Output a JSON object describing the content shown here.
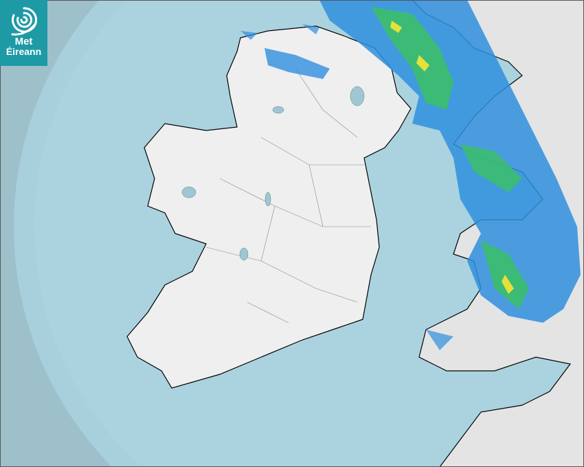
{
  "logo": {
    "line1": "Met",
    "line2": "Éireann",
    "icon": "swirl-icon"
  },
  "map": {
    "type": "rainfall-radar",
    "colors": {
      "outside_coverage": "#9dc0ca",
      "sea": "#aad3df",
      "land": "#eeeeee",
      "rain_light": "#2f8fde",
      "rain_moderate": "#3bbf6a",
      "rain_heavy": "#e6e03a",
      "logo_bg": "#1e9aa6"
    }
  }
}
